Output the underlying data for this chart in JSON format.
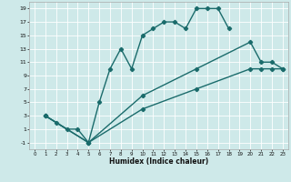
{
  "xlabel": "Humidex (Indice chaleur)",
  "bg_color": "#cee9e9",
  "grid_color": "#ffffff",
  "line_color": "#1a6b6b",
  "xlim": [
    -0.5,
    23.5
  ],
  "ylim": [
    -2,
    20
  ],
  "xticks": [
    0,
    1,
    2,
    3,
    4,
    5,
    6,
    7,
    8,
    9,
    10,
    11,
    12,
    13,
    14,
    15,
    16,
    17,
    18,
    19,
    20,
    21,
    22,
    23
  ],
  "yticks": [
    -1,
    1,
    3,
    5,
    7,
    9,
    11,
    13,
    15,
    17,
    19
  ],
  "curve1_x": [
    1,
    2,
    3,
    4,
    5,
    6,
    7,
    8,
    9,
    10,
    11,
    12,
    13,
    14,
    15,
    16,
    17,
    18
  ],
  "curve1_y": [
    3,
    2,
    1,
    1,
    -1,
    5,
    10,
    13,
    10,
    15,
    16,
    17,
    17,
    16,
    19,
    19,
    19,
    16
  ],
  "curve2_x": [
    1,
    5,
    10,
    15,
    20,
    21,
    22,
    23
  ],
  "curve2_y": [
    3,
    -1,
    6,
    10,
    14,
    11,
    11,
    10
  ],
  "curve3_x": [
    1,
    5,
    10,
    15,
    20,
    21,
    22,
    23
  ],
  "curve3_y": [
    3,
    -1,
    4,
    7,
    10,
    10,
    10,
    10
  ],
  "marker": "D",
  "marker_size": 2.2,
  "line_width": 1.0
}
